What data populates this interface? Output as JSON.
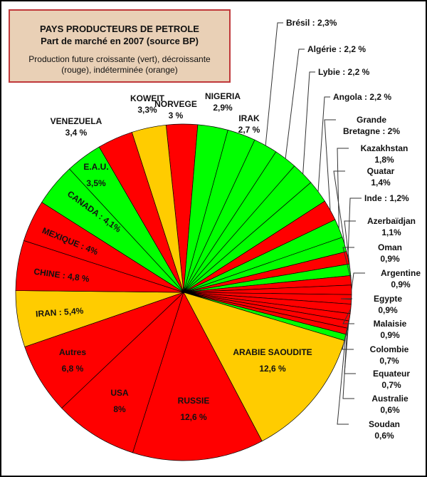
{
  "title": {
    "line1": "PAYS PRODUCTEURS DE PETROLE",
    "line2": "Part de marché en 2007 (source BP)",
    "line3": "Production future croissante (vert), décroissante",
    "line4": "(rouge), indéterminée (orange)"
  },
  "colors": {
    "increasing": "#00ff00",
    "decreasing": "#ff0000",
    "undetermined": "#ffcc00"
  },
  "chart_data": {
    "type": "pie",
    "title": "PAYS PRODUCTEURS DE PETROLE - Part de marché en 2007 (source BP)",
    "unit": "%",
    "slices": [
      {
        "name": "Norvège",
        "value": 3,
        "status": "decreasing",
        "label": [
          "NORVEGE",
          "3 %"
        ]
      },
      {
        "name": "Nigeria",
        "value": 2.9,
        "status": "increasing",
        "label": [
          "NIGERIA",
          "2,9%"
        ]
      },
      {
        "name": "Irak",
        "value": 2.7,
        "status": "increasing",
        "label": [
          "IRAK",
          "2,7 %"
        ]
      },
      {
        "name": "Brésil",
        "value": 2.3,
        "status": "increasing",
        "label": [
          "Brésil : 2,3%"
        ]
      },
      {
        "name": "Algérie",
        "value": 2.2,
        "status": "increasing",
        "label": [
          "Algérie : 2,2 %"
        ]
      },
      {
        "name": "Lybie",
        "value": 2.2,
        "status": "increasing",
        "label": [
          "Lybie : 2,2 %"
        ]
      },
      {
        "name": "Angola",
        "value": 2.2,
        "status": "increasing",
        "label": [
          "Angola : 2,2 %"
        ]
      },
      {
        "name": "Grande Bretagne",
        "value": 2,
        "status": "decreasing",
        "label": [
          "Grande",
          "Bretagne : 2%"
        ]
      },
      {
        "name": "Kazakhstan",
        "value": 1.8,
        "status": "increasing",
        "label": [
          "Kazakhstan",
          "1,8%"
        ]
      },
      {
        "name": "Quatar",
        "value": 1.4,
        "status": "increasing",
        "label": [
          "Quatar",
          "1,4%"
        ]
      },
      {
        "name": "Inde",
        "value": 1.2,
        "status": "decreasing",
        "label": [
          "Inde : 1,2%"
        ]
      },
      {
        "name": "Azerbaïdjan",
        "value": 1.1,
        "status": "increasing",
        "label": [
          "Azerbaïdjan",
          "1,1%"
        ]
      },
      {
        "name": "Oman",
        "value": 0.9,
        "status": "decreasing",
        "label": [
          "Oman",
          "0,9%"
        ]
      },
      {
        "name": "Argentine",
        "value": 0.9,
        "status": "decreasing",
        "label": [
          "Argentine",
          "0,9%"
        ]
      },
      {
        "name": "Egypte",
        "value": 0.9,
        "status": "decreasing",
        "label": [
          "Egypte",
          "0,9%"
        ]
      },
      {
        "name": "Malaisie",
        "value": 0.9,
        "status": "decreasing",
        "label": [
          "Malaisie",
          "0,9%"
        ]
      },
      {
        "name": "Colombie",
        "value": 0.7,
        "status": "decreasing",
        "label": [
          "Colombie",
          "0,7%"
        ]
      },
      {
        "name": "Equateur",
        "value": 0.7,
        "status": "decreasing",
        "label": [
          "Equateur",
          "0,7%"
        ]
      },
      {
        "name": "Australie",
        "value": 0.6,
        "status": "decreasing",
        "label": [
          "Australie",
          "0,6%"
        ]
      },
      {
        "name": "Soudan",
        "value": 0.6,
        "status": "increasing",
        "label": [
          "Soudan",
          "0,6%"
        ]
      },
      {
        "name": "Arabie Saoudite",
        "value": 12.6,
        "status": "undetermined",
        "label": [
          "ARABIE SAOUDITE",
          "12,6 %"
        ]
      },
      {
        "name": "Russie",
        "value": 12.6,
        "status": "decreasing",
        "label": [
          "RUSSIE",
          "12,6 %"
        ]
      },
      {
        "name": "USA",
        "value": 8,
        "status": "decreasing",
        "label": [
          "USA",
          "8%"
        ]
      },
      {
        "name": "Autres",
        "value": 6.8,
        "status": "decreasing",
        "label": [
          "Autres",
          "6,8 %"
        ]
      },
      {
        "name": "Iran",
        "value": 5.4,
        "status": "undetermined",
        "label": [
          "IRAN : 5,4%"
        ]
      },
      {
        "name": "Chine",
        "value": 4.8,
        "status": "decreasing",
        "label": [
          "CHINE : 4,8 %"
        ]
      },
      {
        "name": "Mexique",
        "value": 4,
        "status": "decreasing",
        "label": [
          "MEXIQUE : 4%"
        ]
      },
      {
        "name": "Canada",
        "value": 4.1,
        "status": "increasing",
        "label": [
          "CANADA : 4,1%"
        ]
      },
      {
        "name": "E.A.U.",
        "value": 3.5,
        "status": "increasing",
        "label": [
          "E.A.U.",
          "3,5%"
        ]
      },
      {
        "name": "Venezuela",
        "value": 3.4,
        "status": "decreasing",
        "label": [
          "VENEZUELA",
          "3,4 %"
        ]
      },
      {
        "name": "Koweit",
        "value": 3.3,
        "status": "undetermined",
        "label": [
          "KOWEIT",
          "3,3%"
        ]
      }
    ]
  }
}
